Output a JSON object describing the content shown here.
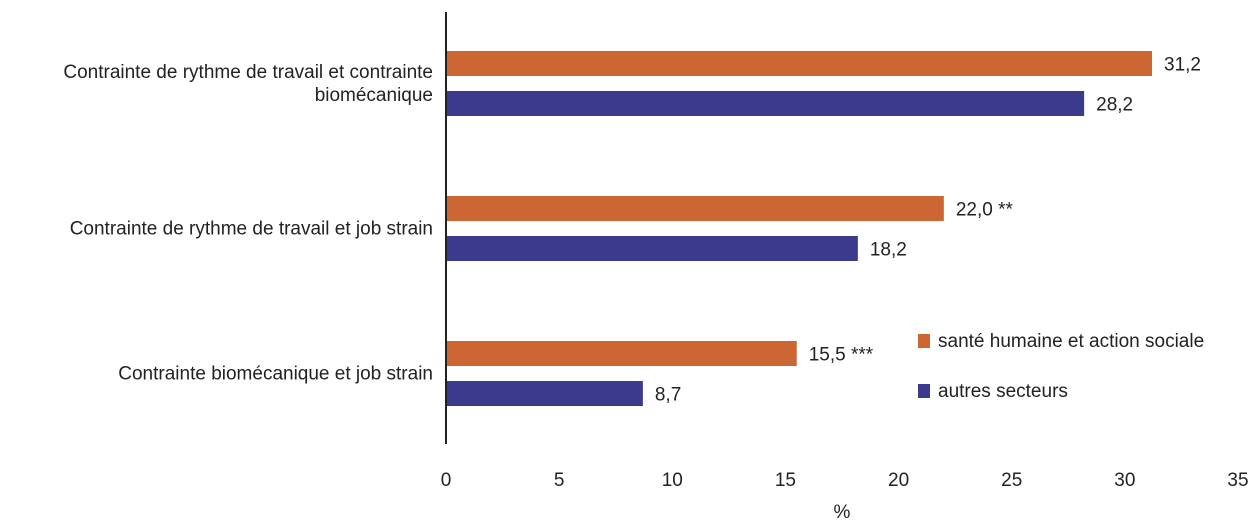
{
  "colors": {
    "sante": "#CC6633",
    "autres": "#3B3A8C",
    "axis": "#222222",
    "text": "#222222"
  },
  "chart_data": {
    "type": "bar",
    "orientation": "horizontal",
    "xlabel": "%",
    "xlim": [
      0,
      35
    ],
    "xticks": [
      "0",
      "5",
      "10",
      "15",
      "20",
      "25",
      "30",
      "35"
    ],
    "grid": false,
    "legend_position": "bottom-right",
    "categories": [
      [
        "Contrainte de rythme de travail et contrainte",
        "biomécanique"
      ],
      [
        "Contrainte de rythme de travail et job strain"
      ],
      [
        "Contrainte biomécanique et job strain"
      ]
    ],
    "series": [
      {
        "name": "santé humaine et action sociale",
        "color": "#CC6633",
        "values": [
          31.2,
          22.0,
          15.5
        ],
        "labels": [
          "31,2",
          "22,0 **",
          "15,5 ***"
        ]
      },
      {
        "name": "autres secteurs",
        "color": "#3B3A8C",
        "values": [
          28.2,
          18.2,
          8.7
        ],
        "labels": [
          "28,2",
          "18,2",
          "8,7"
        ]
      }
    ]
  }
}
